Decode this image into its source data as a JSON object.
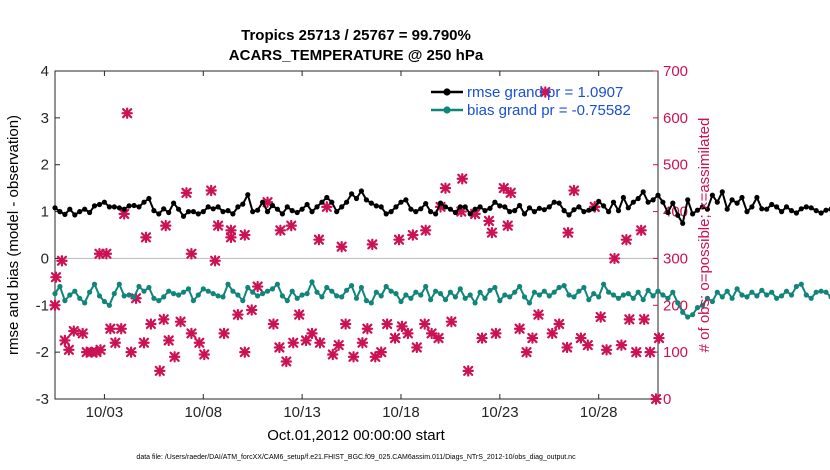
{
  "chart_data": {
    "type": "line",
    "title_line1": "Tropics 25713 / 25767 = 99.790%",
    "title_line2": "ACARS_TEMPERATURE @ 250 hPa",
    "ylabel": "rmse and bias (model - observation)",
    "y2label": "# of obs: o=possible; ×=assimilated",
    "xlabel": "Oct.01,2012 00:00:00 start",
    "footnote": "data file: /Users/raeder/DAI/ATM_forcXX/CAM6_setup/f.e21.FHIST_BGC.f09_025.CAM6assim.011/Diags_NTrS_2012-10/obs_diag_output.nc",
    "ylim": [
      -3,
      4
    ],
    "y2lim": [
      0,
      700
    ],
    "xlim": [
      0.5,
      31.0
    ],
    "yticks": [
      "4",
      "3",
      "2",
      "1",
      "0",
      "-1",
      "-2",
      "-3"
    ],
    "y2ticks": [
      "700",
      "600",
      "500",
      "400",
      "300",
      "200",
      "100",
      "0"
    ],
    "xticks": [
      {
        "x": 3,
        "label": "10/03"
      },
      {
        "x": 8,
        "label": "10/08"
      },
      {
        "x": 13,
        "label": "10/13"
      },
      {
        "x": 18,
        "label": "10/18"
      },
      {
        "x": 23,
        "label": "10/23"
      },
      {
        "x": 28,
        "label": "10/28"
      }
    ],
    "x_start": 0.5,
    "x_step": 0.25,
    "series": [
      {
        "name": "rmse grand pr = 1.0907",
        "color": "#000000",
        "values": [
          1.08,
          1.0,
          0.94,
          1.05,
          0.93,
          1.0,
          1.05,
          0.98,
          1.12,
          1.15,
          1.2,
          1.1,
          1.1,
          1.08,
          1.05,
          1.12,
          1.13,
          1.1,
          1.2,
          1.28,
          1.02,
          0.95,
          1.06,
          0.98,
          1.18,
          1.05,
          0.9,
          1.0,
          1.0,
          0.95,
          1.0,
          1.1,
          1.06,
          1.1,
          1.0,
          1.02,
          0.95,
          1.1,
          1.16,
          1.36,
          1.0,
          1.03,
          1.2,
          1.0,
          1.13,
          1.05,
          0.95,
          1.1,
          1.02,
          0.98,
          1.05,
          1.15,
          1.0,
          1.1,
          1.2,
          1.3,
          1.2,
          1.0,
          1.1,
          1.2,
          1.38,
          1.28,
          1.44,
          1.25,
          1.18,
          1.12,
          1.1,
          0.95,
          1.0,
          1.1,
          1.2,
          1.25,
          1.05,
          1.0,
          1.06,
          1.17,
          1.0,
          0.95,
          1.18,
          1.1,
          1.05,
          0.98,
          1.1,
          1.1,
          0.95,
          1.05,
          1.1,
          1.02,
          1.07,
          1.2,
          1.12,
          1.1,
          1.0,
          1.02,
          1.13,
          0.95,
          1.08,
          1.0,
          1.07,
          1.04,
          1.1,
          1.2,
          1.18,
          1.02,
          0.93,
          1.04,
          1.1,
          1.0,
          1.03,
          1.06,
          1.22,
          1.12,
          1.0,
          1.2,
          1.02,
          1.3,
          1.08,
          1.2,
          1.28,
          1.42,
          1.2,
          1.25,
          1.35,
          1.2,
          0.98,
          1.18,
          0.92,
          0.75,
          1.25,
          0.95,
          1.03,
          1.1,
          1.05,
          1.35,
          1.2,
          1.42,
          1.05,
          1.25,
          1.18,
          1.3,
          1.0,
          1.1,
          1.3,
          1.06,
          1.05,
          1.15,
          1.1,
          1.0,
          1.1,
          1.02,
          0.97,
          1.06,
          1.1,
          1.08,
          1.02,
          0.97,
          1.03,
          1.05,
          1.1,
          1.02,
          1.0,
          1.12,
          1.0,
          1.12,
          1.05,
          1.1,
          1.15,
          1.02,
          1.1,
          1.04,
          1.12,
          1.05,
          1.07,
          1.0,
          1.1,
          0.95,
          1.05,
          1.04,
          1.03,
          0.98,
          1.05,
          1.18,
          1.05,
          1.1,
          1.05,
          1.0,
          1.12,
          1.15,
          1.08,
          1.0,
          0.95,
          1.08,
          1.2,
          1.05,
          1.1,
          1.15,
          1.07,
          1.12,
          1.06,
          1.08,
          1.1,
          1.05,
          1.15,
          1.2,
          1.02,
          1.1,
          1.05,
          1.07,
          1.04,
          1.1,
          1.02,
          0.98,
          1.05,
          1.12,
          1.1,
          1.0,
          1.23,
          1.08,
          1.05,
          1.12,
          1.1,
          1.08,
          1.06,
          1.1,
          1.07,
          1.05,
          1.08,
          1.08,
          1.08
        ]
      },
      {
        "name": "bias grand pr = -0.75582",
        "color": "#12857a",
        "values": [
          -0.75,
          -0.6,
          -0.9,
          -0.78,
          -0.7,
          -0.85,
          -0.95,
          -0.72,
          -0.55,
          -0.8,
          -0.92,
          -1.0,
          -0.75,
          -0.55,
          -0.8,
          -0.78,
          -0.82,
          -0.6,
          -0.7,
          -0.62,
          -0.85,
          -0.9,
          -0.82,
          -0.7,
          -0.75,
          -0.78,
          -0.72,
          -0.65,
          -0.9,
          -0.78,
          -0.65,
          -0.7,
          -0.75,
          -0.8,
          -0.82,
          -0.55,
          -0.7,
          -0.78,
          -0.9,
          -0.62,
          -0.72,
          -0.8,
          -0.75,
          -0.7,
          -0.65,
          -0.55,
          -0.8,
          -0.9,
          -0.7,
          -0.85,
          -0.78,
          -0.75,
          -0.5,
          -0.72,
          -0.82,
          -0.62,
          -0.7,
          -0.8,
          -0.82,
          -0.68,
          -0.58,
          -0.85,
          -0.62,
          -0.9,
          -0.95,
          -0.72,
          -0.8,
          -0.6,
          -0.7,
          -0.75,
          -0.92,
          -0.78,
          -0.85,
          -0.72,
          -0.78,
          -0.6,
          -0.88,
          -0.7,
          -0.75,
          -0.88,
          -0.72,
          -0.82,
          -0.65,
          -0.85,
          -0.78,
          -0.95,
          -0.72,
          -0.85,
          -0.68,
          -0.62,
          -0.9,
          -0.78,
          -0.82,
          -0.72,
          -0.6,
          -0.82,
          -0.95,
          -0.72,
          -0.78,
          -0.7,
          -0.8,
          -0.72,
          -0.62,
          -0.58,
          -0.78,
          -0.82,
          -0.7,
          -0.62,
          -0.88,
          -0.75,
          -0.82,
          -0.55,
          -0.72,
          -0.78,
          -0.85,
          -0.78,
          -0.75,
          -0.85,
          -0.72,
          -0.88,
          -0.68,
          -0.8,
          -0.7,
          -0.78,
          -0.85,
          -0.72,
          -0.95,
          -1.15,
          -1.25,
          -1.2,
          -1.05,
          -1.0,
          -0.85,
          -0.92,
          -0.72,
          -0.82,
          -0.7,
          -0.85,
          -0.65,
          -0.78,
          -0.82,
          -0.72,
          -0.8,
          -0.68,
          -0.78,
          -0.72,
          -0.85,
          -0.8,
          -0.7,
          -0.78,
          -0.6,
          -0.55,
          -0.78,
          -0.85,
          -0.72,
          -0.7,
          -0.72,
          -0.82,
          -0.78,
          -0.85,
          -0.7,
          -0.6,
          -0.72,
          -0.85,
          -0.75,
          -0.8,
          -0.72,
          -0.88,
          -0.7,
          -0.78,
          -0.62,
          -0.72,
          -0.85,
          -0.78,
          -0.6,
          -0.85,
          -0.72,
          -0.8,
          -0.72,
          -0.68,
          -0.85,
          -0.72,
          -0.78,
          -0.82,
          -0.65,
          -0.8,
          -0.72,
          -0.68,
          -0.8,
          -0.72,
          -0.62,
          -0.78,
          -0.8,
          -0.72,
          -0.68,
          -0.85,
          -0.72,
          -0.82,
          -0.7,
          -0.78,
          -0.72,
          -0.68,
          -0.62,
          -0.88,
          -0.78,
          -0.72,
          -0.85,
          -0.65,
          -0.78,
          -0.72,
          -0.88,
          -0.8,
          -0.72,
          -0.68,
          -0.8,
          -0.72,
          -0.75,
          -0.8,
          -0.78,
          -0.7,
          -0.72,
          -0.82,
          -0.68,
          -0.55,
          -0.72,
          -0.7
        ]
      }
    ],
    "obs_assimilated": {
      "name": "# of obs assimilated",
      "color": "#cc1155",
      "points": [
        [
          0.5,
          200
        ],
        [
          0.85,
          295
        ],
        [
          1.0,
          125
        ],
        [
          1.2,
          105
        ],
        [
          1.45,
          145
        ],
        [
          1.9,
          140
        ],
        [
          2.1,
          100
        ],
        [
          2.35,
          100
        ],
        [
          2.6,
          100
        ],
        [
          2.8,
          105
        ],
        [
          3.1,
          310
        ],
        [
          3.3,
          150
        ],
        [
          3.55,
          120
        ],
        [
          3.85,
          150
        ],
        [
          4.15,
          610
        ],
        [
          4.35,
          100
        ],
        [
          4.6,
          215
        ],
        [
          5.0,
          120
        ],
        [
          5.35,
          160
        ],
        [
          5.8,
          60
        ],
        [
          6.0,
          170
        ],
        [
          6.25,
          125
        ],
        [
          6.55,
          90
        ],
        [
          6.85,
          165
        ],
        [
          7.15,
          440
        ],
        [
          7.4,
          140
        ],
        [
          7.8,
          120
        ],
        [
          8.05,
          95
        ],
        [
          8.4,
          445
        ],
        [
          8.75,
          370
        ],
        [
          9.05,
          140
        ],
        [
          9.4,
          360
        ],
        [
          9.75,
          180
        ],
        [
          10.1,
          100
        ],
        [
          10.45,
          190
        ],
        [
          10.75,
          240
        ],
        [
          11.25,
          420
        ],
        [
          11.55,
          160
        ],
        [
          11.85,
          110
        ],
        [
          12.2,
          80
        ],
        [
          12.55,
          120
        ],
        [
          12.85,
          180
        ],
        [
          13.2,
          125
        ],
        [
          13.5,
          140
        ],
        [
          13.9,
          120
        ],
        [
          14.25,
          410
        ],
        [
          14.55,
          95
        ],
        [
          14.85,
          115
        ],
        [
          15.2,
          160
        ],
        [
          15.6,
          90
        ],
        [
          16.05,
          120
        ],
        [
          16.3,
          150
        ],
        [
          16.7,
          90
        ],
        [
          17.0,
          100
        ],
        [
          17.3,
          160
        ],
        [
          17.7,
          130
        ],
        [
          18.05,
          155
        ],
        [
          18.35,
          140
        ],
        [
          18.8,
          110
        ],
        [
          19.2,
          160
        ],
        [
          19.55,
          140
        ],
        [
          19.9,
          130
        ],
        [
          20.25,
          450
        ],
        [
          20.55,
          165
        ],
        [
          21.1,
          470
        ],
        [
          21.4,
          60
        ],
        [
          21.75,
          395
        ],
        [
          22.1,
          130
        ],
        [
          22.45,
          380
        ],
        [
          22.8,
          140
        ],
        [
          23.2,
          450
        ],
        [
          23.55,
          440
        ],
        [
          24.0,
          150
        ],
        [
          24.35,
          100
        ],
        [
          24.65,
          130
        ],
        [
          24.95,
          180
        ],
        [
          25.3,
          655
        ],
        [
          25.65,
          140
        ],
        [
          26.0,
          160
        ],
        [
          26.4,
          110
        ],
        [
          26.75,
          445
        ],
        [
          27.1,
          130
        ],
        [
          27.45,
          115
        ],
        [
          27.8,
          410
        ],
        [
          28.1,
          175
        ],
        [
          28.4,
          105
        ],
        [
          28.8,
          300
        ],
        [
          29.15,
          115
        ],
        [
          29.55,
          170
        ],
        [
          29.9,
          100
        ],
        [
          30.3,
          170
        ],
        [
          30.6,
          100
        ],
        [
          30.9,
          0
        ],
        [
          31.05,
          130
        ]
      ]
    },
    "obs_extra_cross": [
      [
        0.55,
        260
      ],
      [
        2.75,
        310
      ],
      [
        4.0,
        395
      ],
      [
        5.1,
        345
      ],
      [
        6.1,
        370
      ],
      [
        7.4,
        310
      ],
      [
        8.6,
        295
      ],
      [
        9.4,
        345
      ],
      [
        10.1,
        350
      ],
      [
        11.9,
        360
      ],
      [
        12.45,
        370
      ],
      [
        13.85,
        340
      ],
      [
        15.0,
        325
      ],
      [
        16.55,
        330
      ],
      [
        17.9,
        340
      ],
      [
        18.6,
        350
      ],
      [
        19.25,
        360
      ],
      [
        20.0,
        410
      ],
      [
        21.05,
        400
      ],
      [
        22.6,
        355
      ],
      [
        23.4,
        370
      ],
      [
        26.45,
        355
      ],
      [
        27.8,
        410
      ],
      [
        29.4,
        340
      ],
      [
        30.15,
        360
      ]
    ],
    "legend": [
      "rmse grand pr = 1.0907",
      "bias grand pr = -0.75582"
    ]
  }
}
